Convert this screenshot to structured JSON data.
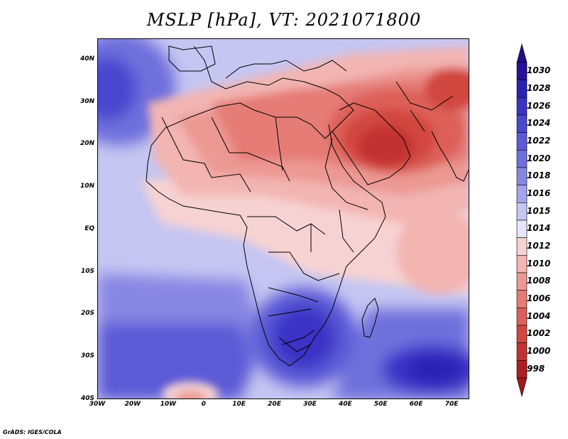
{
  "title": "MSLP [hPa], VT: 2021071800",
  "credit": "GrADS: IGES/COLA",
  "map": {
    "lon_range": [
      -30,
      75
    ],
    "lat_range": [
      -40,
      45
    ],
    "lat_ticks": [
      {
        "value": 40,
        "label": "40N"
      },
      {
        "value": 30,
        "label": "30N"
      },
      {
        "value": 20,
        "label": "20N"
      },
      {
        "value": 10,
        "label": "10N"
      },
      {
        "value": 0,
        "label": "EQ"
      },
      {
        "value": -10,
        "label": "10S"
      },
      {
        "value": -20,
        "label": "20S"
      },
      {
        "value": -30,
        "label": "30S"
      },
      {
        "value": -40,
        "label": "40S"
      }
    ],
    "lon_ticks": [
      {
        "value": -30,
        "label": "30W"
      },
      {
        "value": -20,
        "label": "20W"
      },
      {
        "value": -10,
        "label": "10W"
      },
      {
        "value": 0,
        "label": "0"
      },
      {
        "value": 10,
        "label": "10E"
      },
      {
        "value": 20,
        "label": "20E"
      },
      {
        "value": 30,
        "label": "30E"
      },
      {
        "value": 40,
        "label": "40E"
      },
      {
        "value": 50,
        "label": "50E"
      },
      {
        "value": 60,
        "label": "60E"
      },
      {
        "value": 70,
        "label": "70E"
      }
    ]
  },
  "colorbar": {
    "unit": "hPa",
    "levels": [
      {
        "label": "1030",
        "color": "#24129c"
      },
      {
        "label": "1028",
        "color": "#2b22b4"
      },
      {
        "label": "1026",
        "color": "#3a33c6"
      },
      {
        "label": "1024",
        "color": "#4a47cf"
      },
      {
        "label": "1022",
        "color": "#5c5ad6"
      },
      {
        "label": "1020",
        "color": "#706fdd"
      },
      {
        "label": "1018",
        "color": "#8886e3"
      },
      {
        "label": "1016",
        "color": "#a4a3eb"
      },
      {
        "label": "1015",
        "color": "#c6c6f2"
      },
      {
        "label": "1014",
        "color": "#e6e6f8"
      },
      {
        "label": "1012",
        "color": "#f7d2d2"
      },
      {
        "label": "1010",
        "color": "#f2b5b2"
      },
      {
        "label": "1008",
        "color": "#ec9893"
      },
      {
        "label": "1006",
        "color": "#e57c76"
      },
      {
        "label": "1004",
        "color": "#dc6059"
      },
      {
        "label": "1002",
        "color": "#d2463f"
      },
      {
        "label": "1000",
        "color": "#c33330"
      },
      {
        "label": "998",
        "color": "#b01e22"
      }
    ],
    "top_arrow_color": "#1e0f8c",
    "bottom_arrow_color": "#a0181c"
  }
}
